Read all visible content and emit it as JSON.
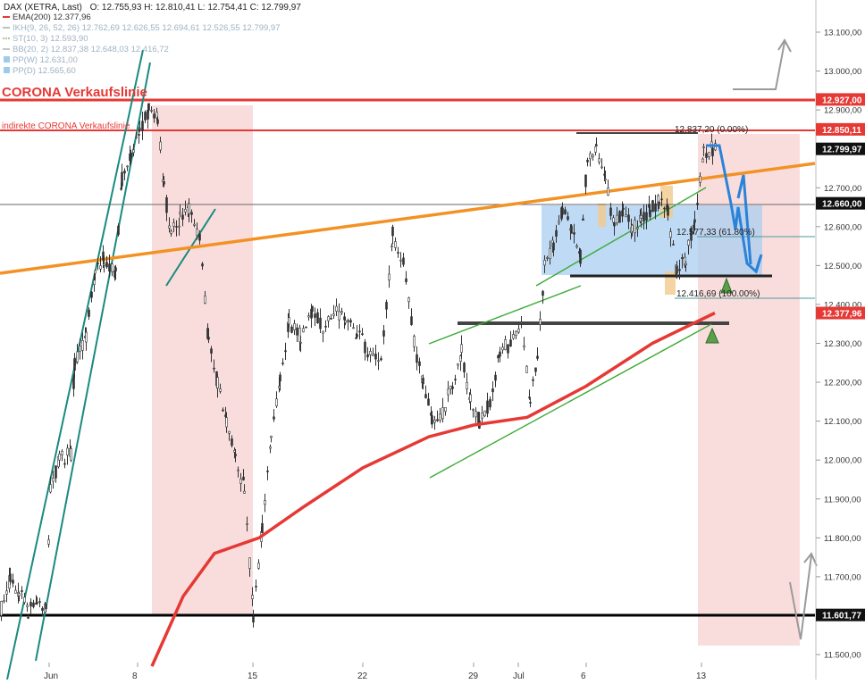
{
  "header": {
    "instrument": "DAX (XETRA, Last)",
    "ohlc": "O: 12.755,93  H: 12.810,41  L: 12.754,41  C: 12.799,97"
  },
  "legend": [
    {
      "label": "EMA(200)  12.377,96",
      "color": "#e53935",
      "swatch": "line"
    },
    {
      "label": "IKH(9, 26, 52, 26)  12.762,69  12.626,55  12.694,61  12.526,55  12.799,97",
      "color": "#b9c7b4",
      "swatch": "line"
    },
    {
      "label": "ST(10, 3)  12.593,90",
      "color": "#a8c89e",
      "swatch": "dash"
    },
    {
      "label": "BB(20, 2)  12.837,38  12.648,03  12.416,72",
      "color": "#c4c4c4",
      "swatch": "line"
    },
    {
      "label": "PP(W)  12.631,00",
      "color": "#9ecbea",
      "swatch": "box"
    },
    {
      "label": "PP(D)  12.565,60",
      "color": "#9ecbea",
      "swatch": "box"
    }
  ],
  "annotations": {
    "corona_line": "CORONA Verkaufslinie",
    "indirect_corona_line": "indirekte CORONA Verkaufslinie",
    "fib_0": "12.837,20 (0.00%)",
    "fib_618": "12.577,33 (61.80%)",
    "fib_100": "12.416,69 (100.00%)"
  },
  "price_badges": [
    {
      "value": 12927.0,
      "label": "12.927,00",
      "color": "#e53935"
    },
    {
      "value": 12850.11,
      "label": "12.850,11",
      "color": "#e53935"
    },
    {
      "value": 12799.97,
      "label": "12.799,97",
      "color": "#111111"
    },
    {
      "value": 12660.0,
      "label": "12.660,00",
      "color": "#111111"
    },
    {
      "value": 12377.96,
      "label": "12.377,96",
      "color": "#e53935"
    },
    {
      "value": 11601.77,
      "label": "11.601,77",
      "color": "#111111"
    }
  ],
  "chart_data": {
    "type": "candlestick",
    "title": "DAX (XETRA, Last)",
    "y_axis_position": "right",
    "ylim": [
      11450,
      13200
    ],
    "y_ticks": [
      "13.100,00",
      "13.000,00",
      "12.900,00",
      "12.800,00",
      "12.700,00",
      "12.600,00",
      "12.500,00",
      "12.400,00",
      "12.300,00",
      "12.200,00",
      "12.100,00",
      "12.000,00",
      "11.900,00",
      "11.800,00",
      "11.700,00",
      "11.600,00",
      "11.500,00"
    ],
    "x_ticks": [
      "Jun",
      "8",
      "15",
      "22",
      "29",
      "Jul",
      "6",
      "13"
    ],
    "horizontal_levels": [
      {
        "name": "CORONA Verkaufslinie",
        "value": 12927.0,
        "color": "#e53935"
      },
      {
        "name": "indirekte CORONA Verkaufslinie",
        "value": 12850.11,
        "color": "#e53935"
      },
      {
        "value": 12660.0,
        "color": "#555555"
      },
      {
        "value": 11601.77,
        "color": "#000000"
      }
    ],
    "series": [
      {
        "name": "EMA(200)",
        "color": "#e53935",
        "values": [
          {
            "x": "8",
            "y": 11470
          },
          {
            "x": "10",
            "y": 11650
          },
          {
            "x": "12",
            "y": 11760
          },
          {
            "x": "15",
            "y": 11800
          },
          {
            "x": "18",
            "y": 11880
          },
          {
            "x": "22",
            "y": 11980
          },
          {
            "x": "26",
            "y": 12060
          },
          {
            "x": "29",
            "y": 12090
          },
          {
            "x": "Jul",
            "y": 12110
          },
          {
            "x": "6",
            "y": 12190
          },
          {
            "x": "10",
            "y": 12300
          },
          {
            "x": "15",
            "y": 12377.96
          }
        ]
      }
    ]
  }
}
